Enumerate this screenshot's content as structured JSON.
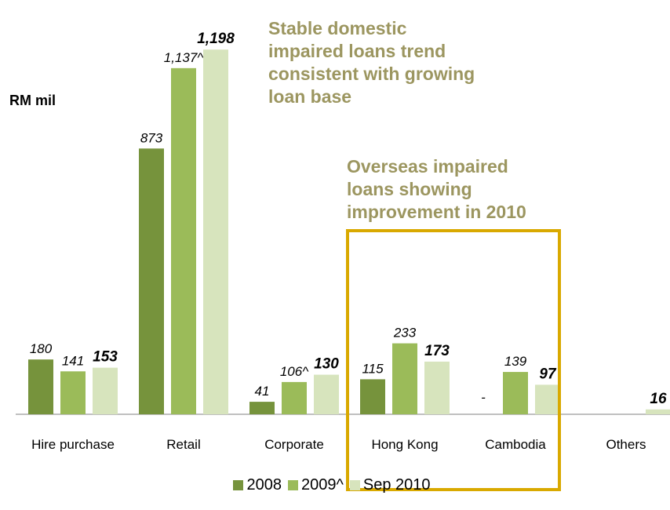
{
  "unit_label": "RM mil",
  "callouts": {
    "domestic": "Stable domestic\nimpaired loans trend\nconsistent with growing\nloan base",
    "overseas": "Overseas impaired\nloans showing\nimprovement in 2010"
  },
  "colors": {
    "s2008": "#76933c",
    "s2009": "#9bbb59",
    "s2010": "#d7e4bd",
    "callout_text": "#9c9660",
    "highlight_border": "#d9a900"
  },
  "chart_data": {
    "type": "bar",
    "categories": [
      "Hire purchase",
      "Retail",
      "Corporate",
      "Hong Kong",
      "Cambodia",
      "Others"
    ],
    "series": [
      {
        "name": "2008",
        "values": [
          180,
          873,
          41,
          115,
          null,
          null
        ],
        "labels": [
          "180",
          "873",
          "41",
          "115",
          "-",
          ""
        ],
        "bold": false
      },
      {
        "name": "2009^",
        "values": [
          141,
          1137,
          106,
          233,
          139,
          null
        ],
        "labels": [
          "141",
          "1,137^",
          "106^",
          "233",
          "139",
          ""
        ],
        "bold": false
      },
      {
        "name": "Sep 2010",
        "values": [
          153,
          1198,
          130,
          173,
          97,
          16
        ],
        "labels": [
          "153",
          "1,198",
          "130",
          "173",
          "97",
          "16"
        ],
        "bold": true
      }
    ],
    "ylabel": "RM mil",
    "ylim": [
      0,
      1250
    ],
    "grid": false,
    "legend": "bottom"
  }
}
